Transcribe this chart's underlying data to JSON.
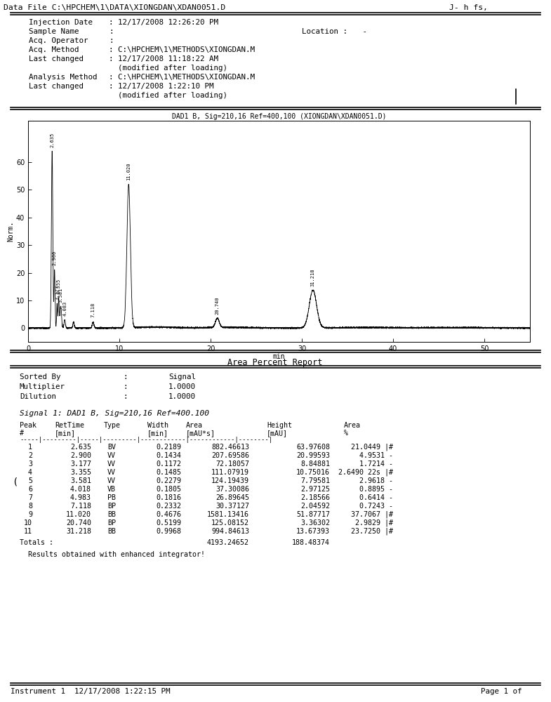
{
  "header_line": "Data File C:\\HPCHEM\\1\\DATA\\XIONGDAN\\XDAN0051.D",
  "header_right": "J- h fs,",
  "chromatogram_title": "DAD1 B, Sig=210,16 Ref=400,100 (XIONGDAN\\XDAN0051.D)",
  "ylabel": "Norm.",
  "xlabel": "min",
  "xmin": 0,
  "xmax": 55,
  "ymin": -5,
  "ymax": 75,
  "yticks": [
    0,
    10,
    20,
    30,
    40,
    50,
    60
  ],
  "xticks": [
    0,
    10,
    20,
    30,
    40,
    50
  ],
  "report_title": "Area Percent Report",
  "sorted_by": "Signal",
  "multiplier": "1.0000",
  "dilution": "1.0000",
  "signal_label": "Signal 1: DAD1 B, Sig=210,16 Ref=400.100",
  "table_rows": [
    [
      1,
      "2.635",
      "BV",
      "0.2189",
      "882.46613",
      "63.97608",
      "21.0449 |#"
    ],
    [
      2,
      "2.900",
      "VV",
      "0.1434",
      "207.69586",
      "20.99593",
      "4.9531 -"
    ],
    [
      3,
      "3.177",
      "VV",
      "0.1172",
      "72.18057",
      "8.84881",
      "1.7214 -"
    ],
    [
      4,
      "3.355",
      "VV",
      "0.1485",
      "111.07919",
      "10.75016",
      "2.6490 22s |#"
    ],
    [
      5,
      "3.581",
      "VV",
      "0.2279",
      "124.19439",
      "7.79581",
      "2.9618 -"
    ],
    [
      6,
      "4.018",
      "VB",
      "0.1805",
      "37.30086",
      "2.97125",
      "0.8895 -"
    ],
    [
      7,
      "4.983",
      "PB",
      "0.1816",
      "26.89645",
      "2.18566",
      "0.6414 -"
    ],
    [
      8,
      "7.118",
      "BP",
      "0.2332",
      "30.37127",
      "2.04592",
      "0.7243 -"
    ],
    [
      9,
      "11.020",
      "BB",
      "0.4676",
      "1581.13416",
      "51.87717",
      "37.7067 |#"
    ],
    [
      10,
      "20.740",
      "BP",
      "0.5199",
      "125.08152",
      "3.36302",
      "2.9829 |#"
    ],
    [
      11,
      "31.218",
      "BB",
      "0.9968",
      "994.84613",
      "13.67393",
      "23.7250 |#"
    ]
  ],
  "totals_area": "4193.24652",
  "totals_height": "188.48374",
  "footer_left": "Instrument 1  12/17/2008 1:22:15 PM",
  "footer_right": "Page 1 of"
}
